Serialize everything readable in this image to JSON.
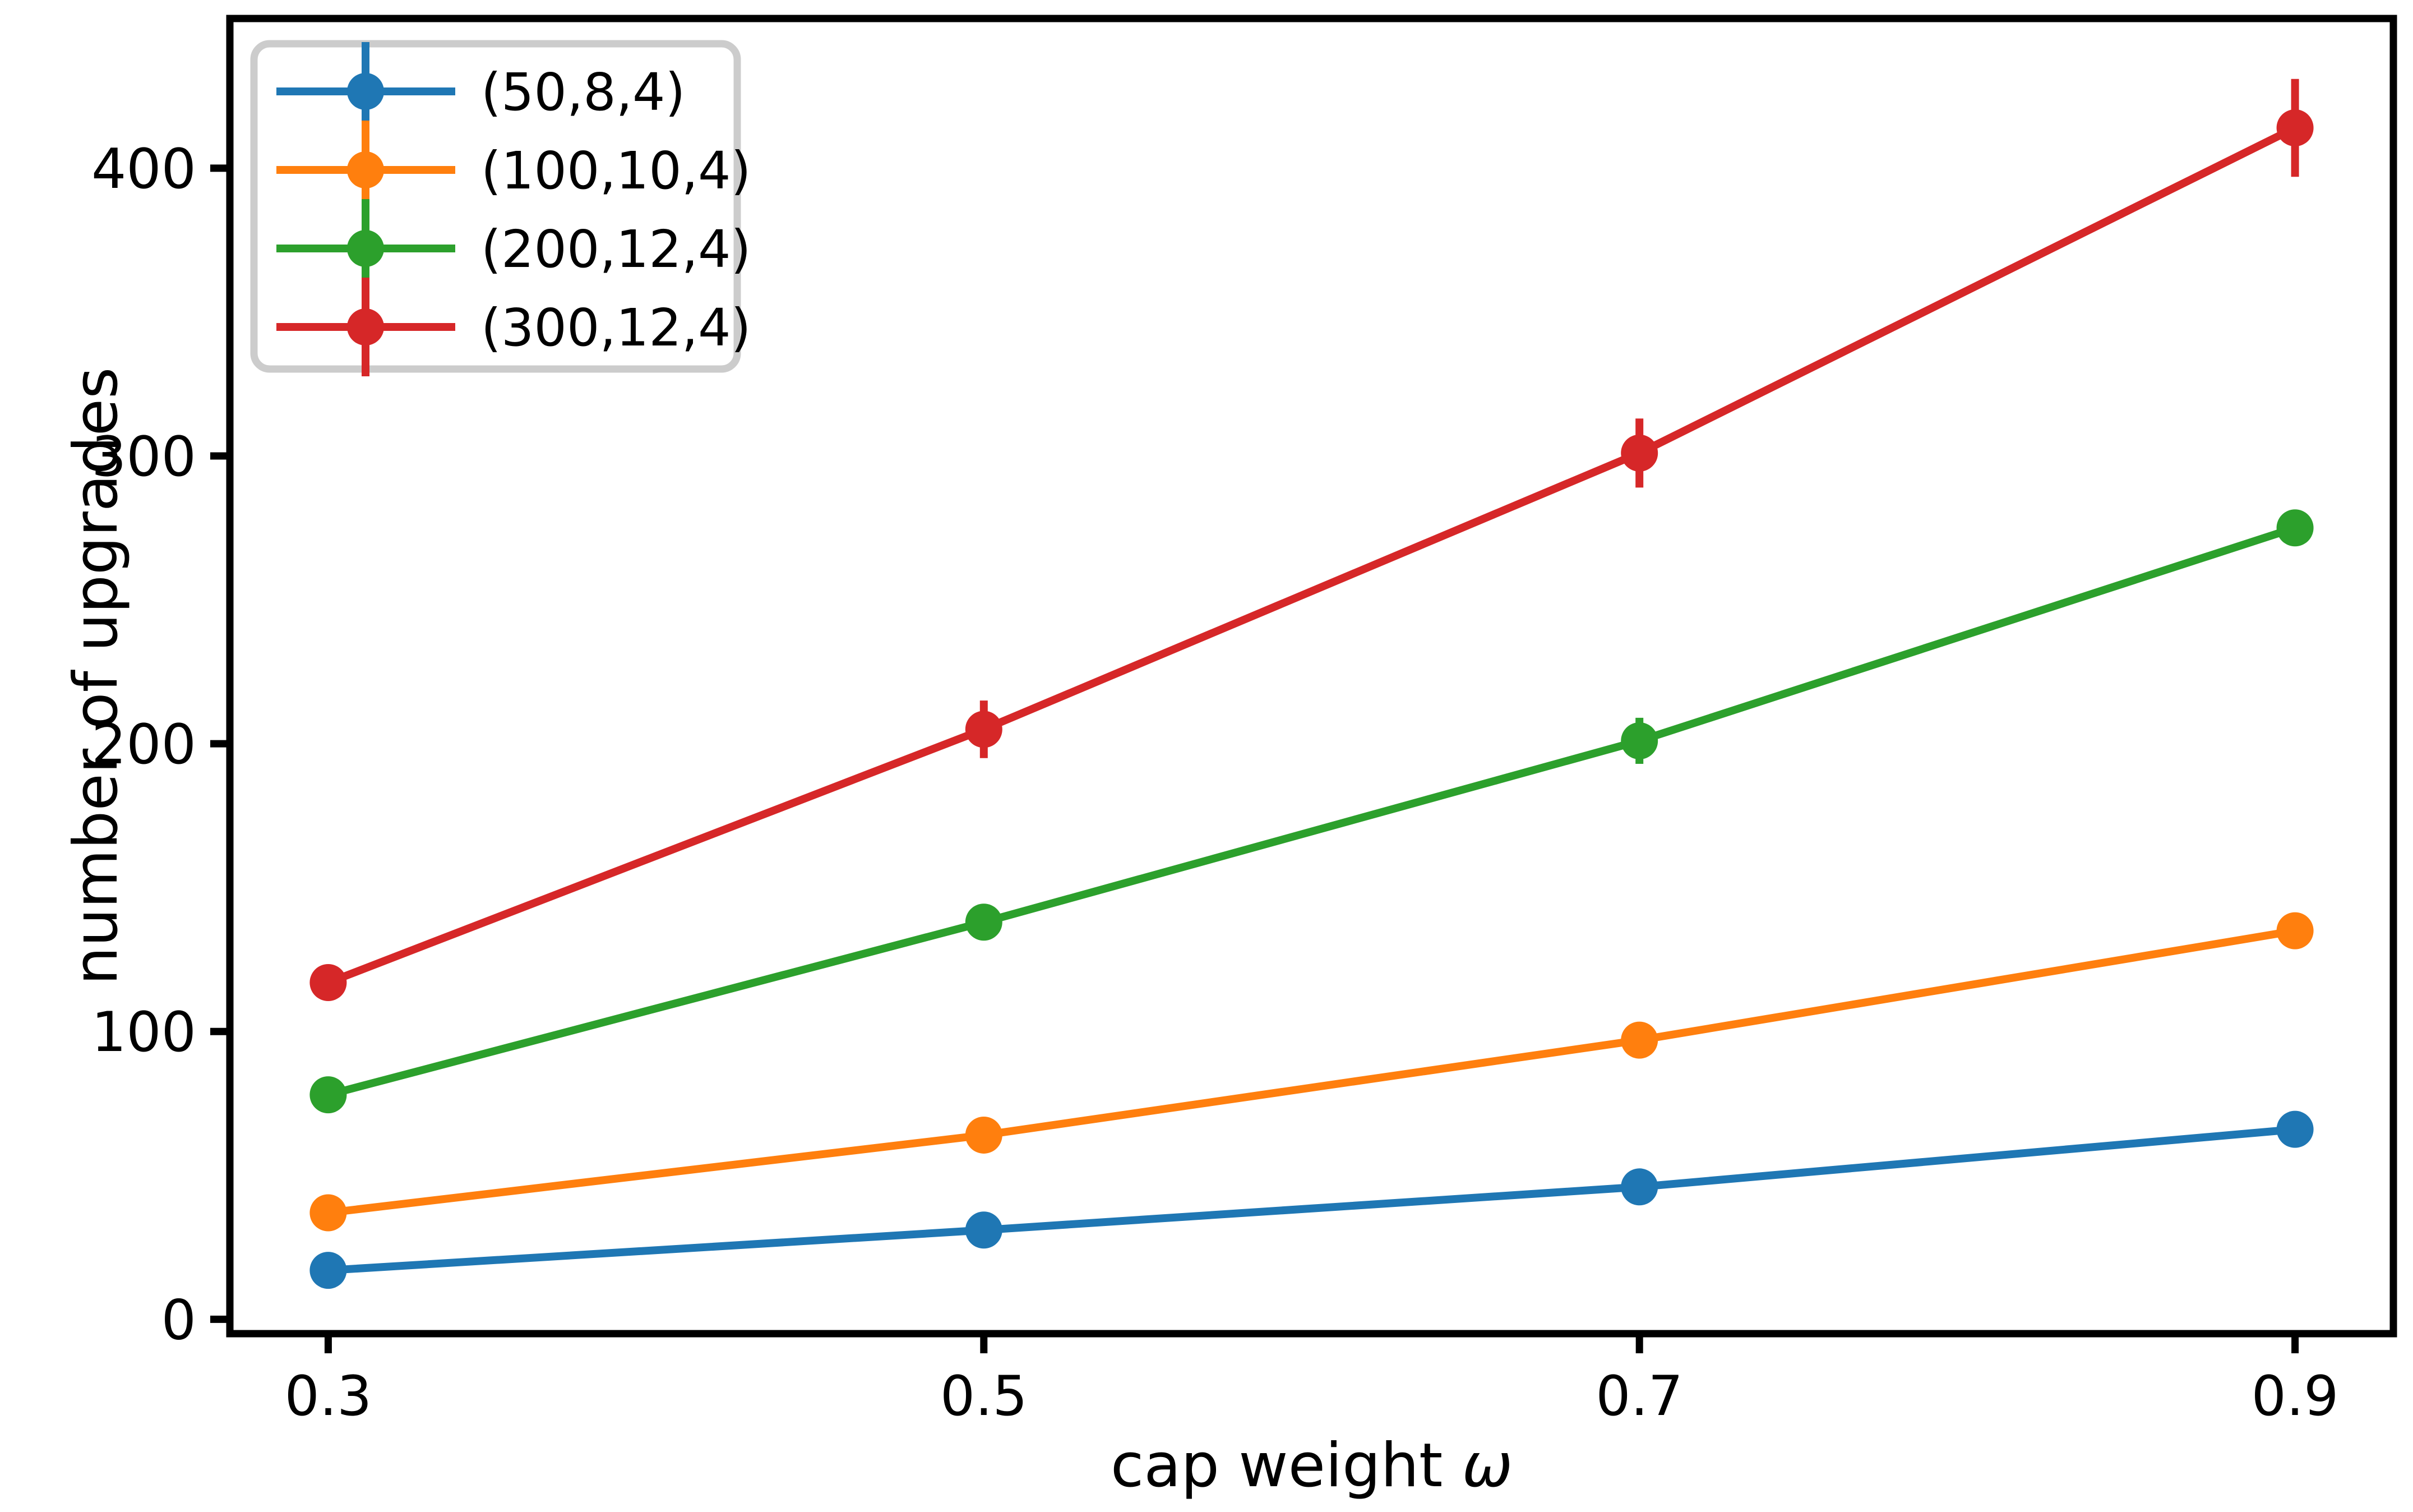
{
  "figure": {
    "background": "#ffffff",
    "text_color": "#000000",
    "axis_color": "#000000",
    "legend_border_color": "#cccccc"
  },
  "chart_data": {
    "type": "line",
    "title": "",
    "xlabel": "cap weight ω",
    "xlabel_parts": [
      {
        "text": "cap weight ",
        "italic": false
      },
      {
        "text": "ω",
        "italic": true
      }
    ],
    "ylabel": "number of upgrades",
    "x": [
      0.3,
      0.5,
      0.7,
      0.9
    ],
    "x_ticks": [
      0.3,
      0.5,
      0.7,
      0.9
    ],
    "x_tick_labels": [
      "0.3",
      "0.5",
      "0.7",
      "0.9"
    ],
    "y_ticks": [
      0,
      100,
      200,
      300,
      400
    ],
    "y_tick_labels": [
      "0",
      "100",
      "200",
      "300",
      "400"
    ],
    "xlim": [
      0.27,
      0.93
    ],
    "ylim": [
      -5,
      452
    ],
    "grid": false,
    "legend_position": "upper left",
    "marker": "circle",
    "error_bars": true,
    "series": [
      {
        "name": "(50,8,4)",
        "color": "#1f77b4",
        "values": [
          17,
          31,
          46,
          66
        ],
        "errors": [
          2,
          2,
          3,
          3
        ]
      },
      {
        "name": "(100,10,4)",
        "color": "#ff7f0e",
        "values": [
          37,
          64,
          97,
          135
        ],
        "errors": [
          3,
          3,
          4,
          4
        ]
      },
      {
        "name": "(200,12,4)",
        "color": "#2ca02c",
        "values": [
          78,
          138,
          201,
          275
        ],
        "errors": [
          4,
          5,
          8,
          6
        ]
      },
      {
        "name": "(300,12,4)",
        "color": "#d62728",
        "values": [
          117,
          205,
          301,
          414
        ],
        "errors": [
          5,
          10,
          12,
          17
        ]
      }
    ]
  }
}
